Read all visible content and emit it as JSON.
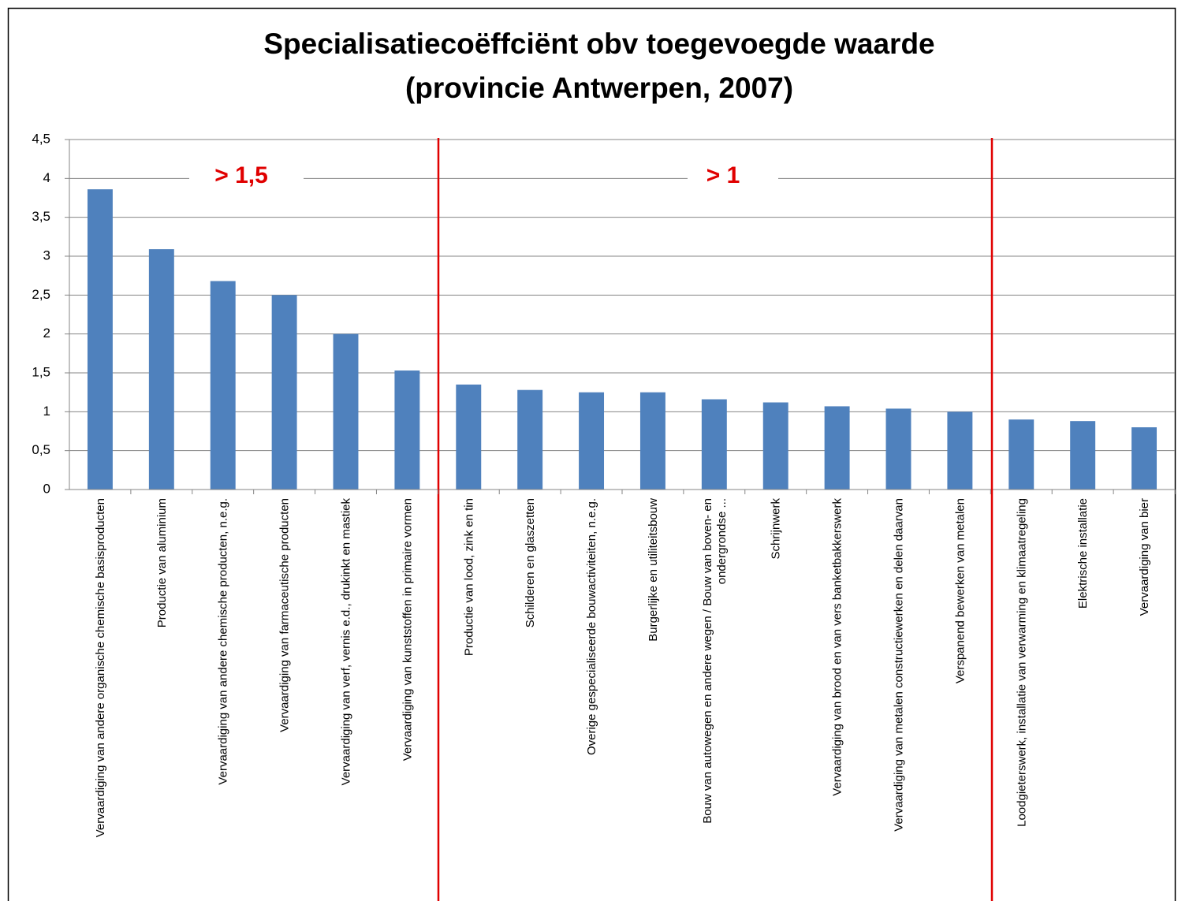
{
  "chart_data": {
    "type": "bar",
    "title": "Specialisatiecoëffciënt obv toegevoegde waarde",
    "subtitle": "(provincie Antwerpen, 2007)",
    "annotations": [
      "> 1,5",
      "> 1"
    ],
    "categories": [
      "Vervaardiging van andere organische chemische basisproducten",
      "Productie van aluminium",
      "Vervaardiging van andere chemische producten, n.e.g.",
      "Vervaardiging van farmaceutische producten",
      "Vervaardiging van verf, vernis e.d., drukinkt en mastiek",
      "Vervaardiging van kunststoffen in primaire vormen",
      "Productie van lood, zink en tin",
      "Schilderen en glaszetten",
      "Overige gespecialiseerde bouwactiviteiten, n.e.g.",
      "Burgerlijke en utiliteitsbouw",
      "Bouw van autowegen en andere wegen / Bouw van boven- en ondergrondse ...",
      "Schrijnwerk",
      "Vervaardiging van brood en van vers banketbakkerswerk",
      "Vervaardiging van metalen constructiewerken en delen daarvan",
      "Verspanend bewerken van metalen",
      "Loodgieterswerk, installatie van verwarming en klimaatregeling",
      "Elektrische installatie",
      "Vervaardiging van bier"
    ],
    "values": [
      3.86,
      3.09,
      2.68,
      2.5,
      2.0,
      1.53,
      1.35,
      1.28,
      1.25,
      1.25,
      1.16,
      1.12,
      1.07,
      1.04,
      1.0,
      0.9,
      0.88,
      0.8
    ],
    "color": "#4f81bd",
    "ylim": [
      0,
      4.5
    ],
    "yticks": [
      0,
      {
        "value": 0.5,
        "label": "0,5"
      },
      1,
      {
        "value": 1.5,
        "label": "1,5"
      },
      2,
      {
        "value": 2.5,
        "label": "2,5"
      },
      3,
      {
        "value": 3.5,
        "label": "3,5"
      },
      4,
      {
        "value": 4.5,
        "label": "4,5"
      }
    ],
    "grid": true
  }
}
